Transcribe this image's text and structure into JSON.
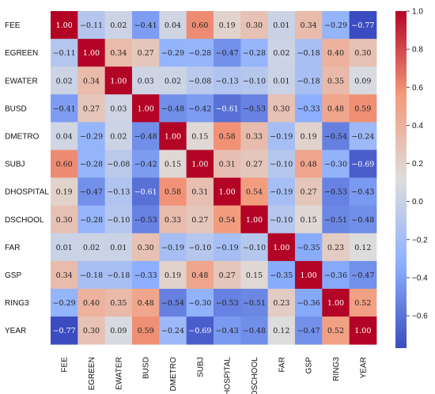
{
  "chart_data": {
    "type": "heatmap",
    "title": "",
    "xlabel": "",
    "ylabel": "",
    "variables": [
      "FEE",
      "EGREEN",
      "EWATER",
      "BUSD",
      "DMETRO",
      "SUBJ",
      "DHOSPITAL",
      "DSCHOOL",
      "FAR",
      "GSP",
      "RING3",
      "YEAR"
    ],
    "matrix": [
      [
        1.0,
        -0.11,
        0.02,
        -0.41,
        0.04,
        0.6,
        0.19,
        0.3,
        0.01,
        0.34,
        -0.29,
        -0.77
      ],
      [
        -0.11,
        1.0,
        0.34,
        0.27,
        -0.29,
        -0.28,
        -0.47,
        -0.28,
        0.02,
        -0.18,
        0.4,
        0.3
      ],
      [
        0.02,
        0.34,
        1.0,
        0.03,
        0.02,
        -0.08,
        -0.13,
        -0.1,
        0.01,
        -0.18,
        0.35,
        0.09
      ],
      [
        -0.41,
        0.27,
        0.03,
        1.0,
        -0.48,
        -0.42,
        -0.61,
        -0.53,
        0.3,
        -0.33,
        0.48,
        0.59
      ],
      [
        0.04,
        -0.29,
        0.02,
        -0.48,
        1.0,
        0.15,
        0.58,
        0.33,
        -0.19,
        0.19,
        -0.54,
        -0.24
      ],
      [
        0.6,
        -0.28,
        -0.08,
        -0.42,
        0.15,
        1.0,
        0.31,
        0.27,
        -0.1,
        0.48,
        -0.3,
        -0.69
      ],
      [
        0.19,
        -0.47,
        -0.13,
        -0.61,
        0.58,
        0.31,
        1.0,
        0.54,
        -0.19,
        0.27,
        -0.53,
        -0.43
      ],
      [
        0.3,
        -0.28,
        -0.1,
        -0.53,
        0.33,
        0.27,
        0.54,
        1.0,
        -0.1,
        0.15,
        -0.51,
        -0.48
      ],
      [
        0.01,
        0.02,
        0.01,
        0.3,
        -0.19,
        -0.1,
        -0.19,
        -0.1,
        1.0,
        -0.35,
        0.23,
        0.12
      ],
      [
        0.34,
        -0.18,
        -0.18,
        -0.33,
        0.19,
        0.48,
        0.27,
        0.15,
        -0.35,
        1.0,
        -0.36,
        -0.47
      ],
      [
        -0.29,
        0.4,
        0.35,
        0.48,
        -0.54,
        -0.3,
        -0.53,
        -0.51,
        0.23,
        -0.36,
        1.0,
        0.52
      ],
      [
        -0.77,
        0.3,
        0.09,
        0.59,
        -0.24,
        -0.69,
        -0.43,
        -0.48,
        0.12,
        -0.47,
        0.52,
        1.0
      ]
    ],
    "value_format": "2 decimals",
    "colormap": "coolwarm",
    "vmin": -0.77,
    "vmax": 1.0,
    "colorbar_ticks": [
      1.0,
      0.8,
      0.6,
      0.4,
      0.2,
      0.0,
      -0.2,
      -0.4,
      -0.6
    ],
    "colorbar_tick_labels": [
      "1.0",
      "0.8",
      "0.6",
      "0.4",
      "0.2",
      "0.0",
      "−0.2",
      "−0.4",
      "−0.6"
    ],
    "colorbar_position": "right",
    "x_tick_rotation": "vertical",
    "grid": false
  }
}
